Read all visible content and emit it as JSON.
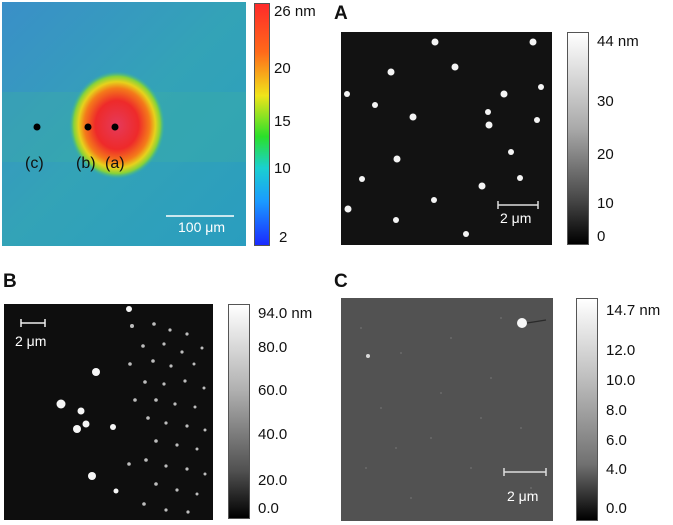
{
  "panel_map": {
    "colorbar_ticks": [
      "26 nm",
      "20",
      "15",
      "10",
      "2"
    ],
    "scalebar": "100 μm",
    "points": [
      "(c)",
      "(b)",
      "(a)"
    ]
  },
  "panel_A": {
    "letter": "A",
    "colorbar_ticks": [
      "44 nm",
      "30",
      "20",
      "10",
      "0"
    ],
    "scalebar": "2 μm"
  },
  "panel_B": {
    "letter": "B",
    "colorbar_ticks": [
      "94.0 nm",
      "80.0",
      "60.0",
      "40.0",
      "20.0",
      "0.0"
    ],
    "scalebar": "2 μm"
  },
  "panel_C": {
    "letter": "C",
    "colorbar_ticks": [
      "14.7 nm",
      "12.0",
      "10.0",
      "8.0",
      "6.0",
      "4.0",
      "0.0"
    ],
    "scalebar": "2 μm"
  }
}
